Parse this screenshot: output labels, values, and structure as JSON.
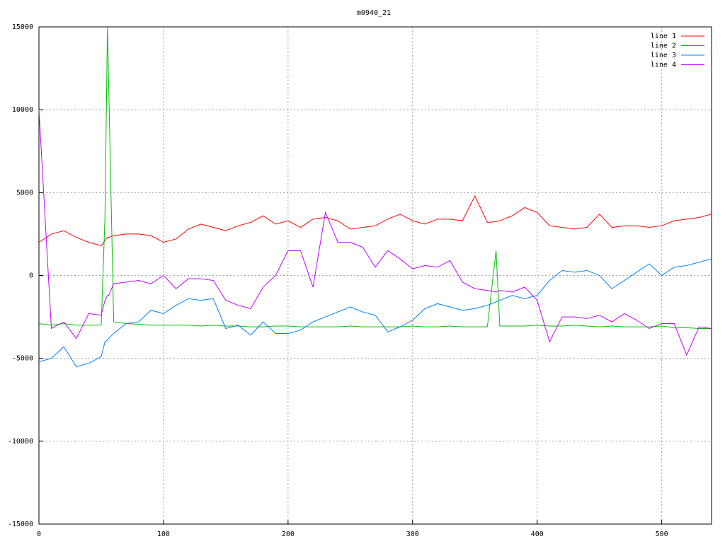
{
  "chart_data": {
    "type": "line",
    "title": "m0940_21",
    "x": [
      0,
      10,
      20,
      30,
      40,
      50,
      53,
      55,
      56,
      60,
      70,
      80,
      90,
      100,
      110,
      120,
      130,
      140,
      150,
      160,
      170,
      180,
      190,
      200,
      210,
      220,
      230,
      240,
      250,
      260,
      270,
      280,
      290,
      300,
      310,
      320,
      330,
      340,
      350,
      360,
      367,
      370,
      380,
      390,
      400,
      410,
      420,
      430,
      440,
      450,
      460,
      470,
      480,
      490,
      500,
      510,
      520,
      530,
      540
    ],
    "series": [
      {
        "name": "line 1",
        "color": "#ff0000",
        "values": [
          2000,
          2500,
          2700,
          2300,
          2000,
          1800,
          2100,
          2300,
          2300,
          2400,
          2500,
          2500,
          2400,
          2000,
          2200,
          2800,
          3100,
          2900,
          2700,
          3000,
          3200,
          3600,
          3100,
          3300,
          2900,
          3400,
          3500,
          3300,
          2800,
          2900,
          3000,
          3400,
          3700,
          3300,
          3100,
          3400,
          3400,
          3300,
          4800,
          3200,
          3250,
          3300,
          3600,
          4100,
          3800,
          3000,
          2900,
          2800,
          2900,
          3700,
          2900,
          3000,
          3000,
          2900,
          3000,
          3300,
          3400,
          3500,
          3700
        ]
      },
      {
        "name": "line 2",
        "color": "#00c000",
        "values": [
          -2900,
          -3000,
          -2900,
          -3000,
          -3000,
          -3000,
          3500,
          15000,
          11500,
          -2800,
          -2900,
          -2950,
          -3000,
          -3000,
          -3000,
          -3000,
          -3050,
          -3000,
          -3050,
          -3050,
          -3100,
          -3100,
          -3050,
          -3050,
          -3100,
          -3100,
          -3100,
          -3100,
          -3050,
          -3100,
          -3100,
          -3100,
          -3100,
          -3050,
          -3100,
          -3100,
          -3050,
          -3100,
          -3100,
          -3100,
          1500,
          -3050,
          -3050,
          -3050,
          -3000,
          -3050,
          -3050,
          -3000,
          -3050,
          -3100,
          -3050,
          -3100,
          -3100,
          -3100,
          -3050,
          -3150,
          -3150,
          -3200,
          -3200
        ]
      },
      {
        "name": "line 3",
        "color": "#0080ff",
        "values": [
          -5200,
          -5000,
          -4300,
          -5500,
          -5300,
          -4900,
          -4000,
          -3900,
          -3800,
          -3500,
          -2900,
          -2800,
          -2100,
          -2300,
          -1800,
          -1400,
          -1500,
          -1400,
          -3200,
          -3000,
          -3600,
          -2800,
          -3500,
          -3500,
          -3300,
          -2800,
          -2500,
          -2200,
          -1900,
          -2200,
          -2400,
          -3400,
          -3100,
          -2700,
          -2000,
          -1700,
          -1900,
          -2100,
          -2000,
          -1800,
          -1600,
          -1500,
          -1200,
          -1400,
          -1200,
          -300,
          300,
          200,
          300,
          0,
          -800,
          -300,
          200,
          700,
          0,
          500,
          600,
          800,
          1000
        ]
      },
      {
        "name": "line 4",
        "color": "#c000ff",
        "values": [
          10000,
          -3200,
          -2800,
          -3800,
          -2300,
          -2400,
          -1500,
          -1200,
          -1200,
          -500,
          -400,
          -300,
          -500,
          0,
          -800,
          -200,
          -200,
          -300,
          -1500,
          -1800,
          -2000,
          -700,
          0,
          1500,
          1500,
          -700,
          3800,
          2000,
          2000,
          1700,
          500,
          1500,
          1000,
          400,
          600,
          500,
          900,
          -400,
          -800,
          -900,
          -1000,
          -900,
          -1000,
          -700,
          -1500,
          -4000,
          -2500,
          -2500,
          -2600,
          -2400,
          -2800,
          -2300,
          -2700,
          -3200,
          -2900,
          -2900,
          -4800,
          -3100,
          -3200
        ]
      }
    ],
    "xlim": [
      0,
      540
    ],
    "ylim": [
      -15000,
      15000
    ],
    "xticks": [
      0,
      100,
      200,
      300,
      400,
      500
    ],
    "yticks": [
      -15000,
      -10000,
      -5000,
      0,
      5000,
      10000,
      15000
    ],
    "grid": true,
    "legend": "top-right"
  }
}
